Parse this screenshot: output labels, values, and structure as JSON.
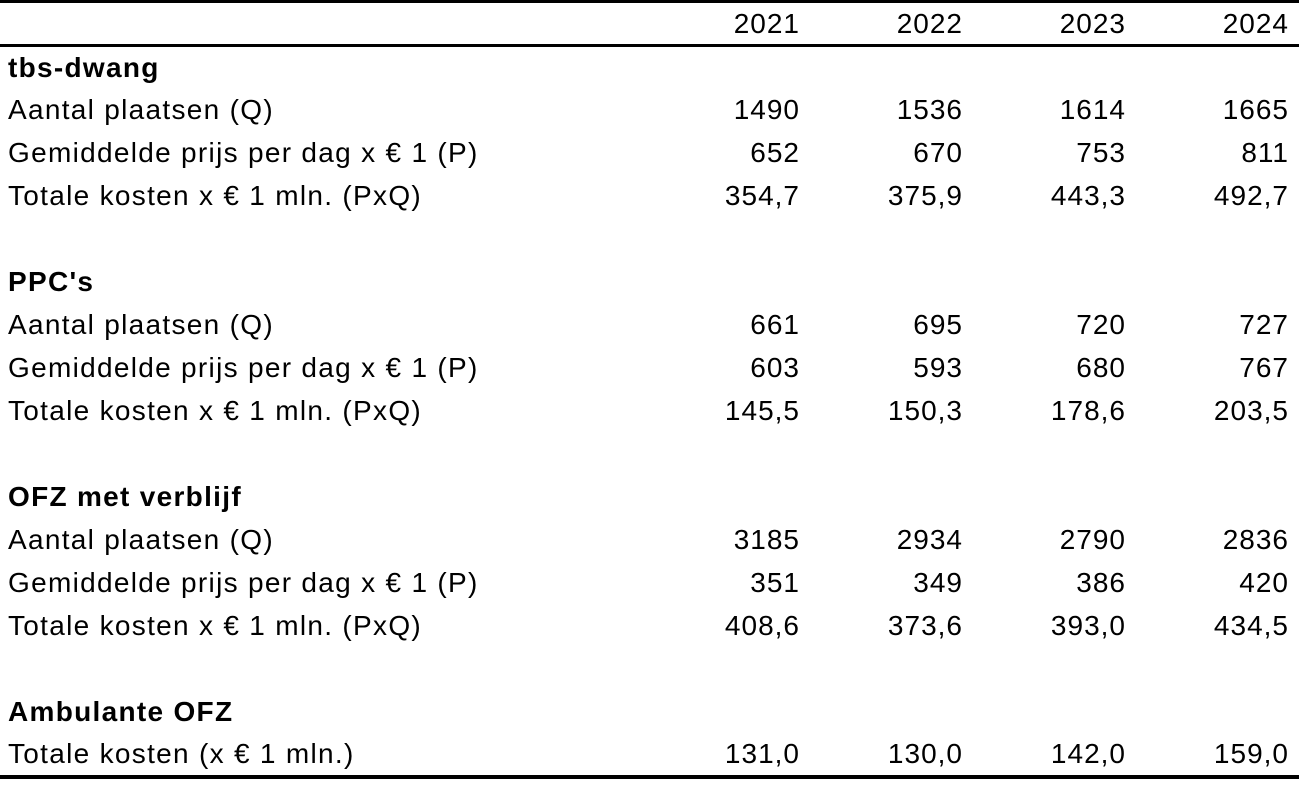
{
  "table": {
    "years": [
      "2021",
      "2022",
      "2023",
      "2024"
    ],
    "sections": [
      {
        "title": "tbs-dwang",
        "rows": [
          {
            "label": "Aantal plaatsen (Q)",
            "values": [
              "1490",
              "1536",
              "1614",
              "1665"
            ]
          },
          {
            "label": "Gemiddelde prijs per dag x € 1 (P)",
            "values": [
              "652",
              "670",
              "753",
              "811"
            ]
          },
          {
            "label": "Totale kosten x € 1 mln. (PxQ)",
            "values": [
              "354,7",
              "375,9",
              "443,3",
              "492,7"
            ]
          }
        ]
      },
      {
        "title": "PPC's",
        "rows": [
          {
            "label": "Aantal plaatsen (Q)",
            "values": [
              "661",
              "695",
              "720",
              "727"
            ]
          },
          {
            "label": "Gemiddelde prijs per dag x € 1 (P)",
            "values": [
              "603",
              "593",
              "680",
              "767"
            ]
          },
          {
            "label": "Totale kosten x € 1 mln. (PxQ)",
            "values": [
              "145,5",
              "150,3",
              "178,6",
              "203,5"
            ]
          }
        ]
      },
      {
        "title": "OFZ met verblijf",
        "rows": [
          {
            "label": "Aantal plaatsen (Q)",
            "values": [
              "3185",
              "2934",
              "2790",
              "2836"
            ]
          },
          {
            "label": "Gemiddelde prijs per dag x € 1 (P)",
            "values": [
              "351",
              "349",
              "386",
              "420"
            ]
          },
          {
            "label": "Totale kosten x € 1 mln. (PxQ)",
            "values": [
              "408,6",
              "373,6",
              "393,0",
              "434,5"
            ]
          }
        ]
      },
      {
        "title": "Ambulante OFZ",
        "rows": [
          {
            "label": "Totale kosten (x € 1 mln.)",
            "values": [
              "131,0",
              "130,0",
              "142,0",
              "159,0"
            ]
          }
        ]
      }
    ]
  },
  "chart_data": {
    "type": "table",
    "title": "",
    "columns": [
      "",
      "2021",
      "2022",
      "2023",
      "2024"
    ],
    "rows": [
      [
        "tbs-dwang",
        "",
        "",
        "",
        ""
      ],
      [
        "Aantal plaatsen (Q)",
        1490,
        1536,
        1614,
        1665
      ],
      [
        "Gemiddelde prijs per dag x € 1 (P)",
        652,
        670,
        753,
        811
      ],
      [
        "Totale kosten x € 1 mln. (PxQ)",
        "354,7",
        "375,9",
        "443,3",
        "492,7"
      ],
      [
        "PPC's",
        "",
        "",
        "",
        ""
      ],
      [
        "Aantal plaatsen (Q)",
        661,
        695,
        720,
        727
      ],
      [
        "Gemiddelde prijs per dag x € 1 (P)",
        603,
        593,
        680,
        767
      ],
      [
        "Totale kosten x € 1 mln. (PxQ)",
        "145,5",
        "150,3",
        "178,6",
        "203,5"
      ],
      [
        "OFZ met verblijf",
        "",
        "",
        "",
        ""
      ],
      [
        "Aantal plaatsen (Q)",
        3185,
        2934,
        2790,
        2836
      ],
      [
        "Gemiddelde prijs per dag x € 1 (P)",
        351,
        349,
        386,
        420
      ],
      [
        "Totale kosten x € 1 mln. (PxQ)",
        "408,6",
        "373,6",
        "393,0",
        "434,5"
      ],
      [
        "Ambulante OFZ",
        "",
        "",
        "",
        ""
      ],
      [
        "Totale kosten (x € 1 mln.)",
        "131,0",
        "130,0",
        "142,0",
        "159,0"
      ]
    ]
  }
}
